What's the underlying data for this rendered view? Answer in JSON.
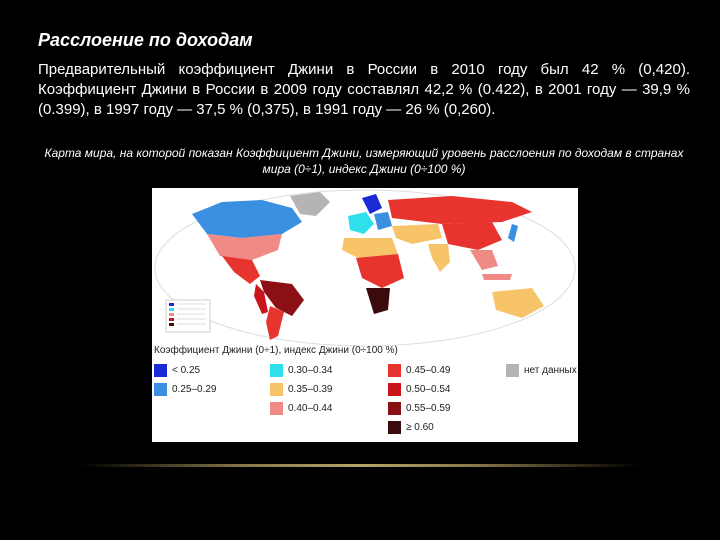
{
  "slide": {
    "title": "Расслоение по доходам",
    "body": "Предварительный коэффициент Джини в России в 2010 году был 42 % (0,420). Коэффициент Джини в России в 2009 году составлял 42,2 % (0.422), в 2001 году — 39,9 % (0.399), в 1997 году — 37,5 % (0,375), в 1991 году — 26 % (0,260).",
    "caption": "Карта мира, на которой показан Коэффициент Джини, измеряющий уровень расслоения по доходам в странах мира (0÷1), индекс Джини (0÷100 %)"
  },
  "map": {
    "legend_title": "Коэффициент Джини (0÷1), индекс Джини (0÷100 %)",
    "legend": [
      {
        "label": "< 0.25",
        "color": "#1a2bd6"
      },
      {
        "label": "0.25–0.29",
        "color": "#3a8fe0"
      },
      {
        "label": "0.30–0.34",
        "color": "#2ee0ec"
      },
      {
        "label": "0.35–0.39",
        "color": "#f7c46a"
      },
      {
        "label": "0.40–0.44",
        "color": "#f08a84"
      },
      {
        "label": "0.45–0.49",
        "color": "#e8342e"
      },
      {
        "label": "0.50–0.54",
        "color": "#c8141a"
      },
      {
        "label": "0.55–0.59",
        "color": "#8a1016"
      },
      {
        "label": "≥ 0.60",
        "color": "#3a0a0c"
      },
      {
        "label": "нет данных",
        "color": "#b4b4b4"
      }
    ]
  }
}
